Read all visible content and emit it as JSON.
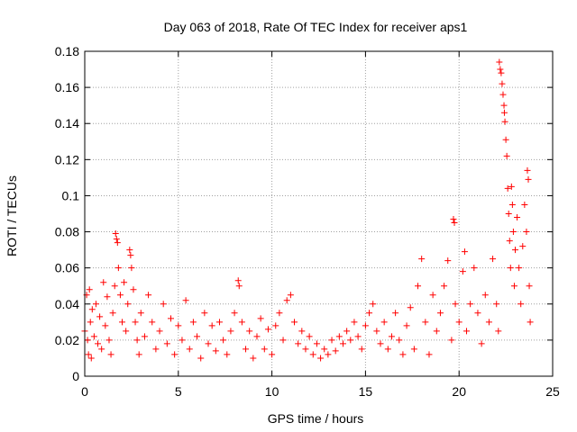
{
  "chart_data": {
    "type": "scatter",
    "title": "Day 063 of 2018, Rate Of TEC Index for receiver aps1",
    "xlabel": "GPS time / hours",
    "ylabel": "ROTI / TECUs",
    "xlim": [
      0,
      25
    ],
    "ylim": [
      0,
      0.18
    ],
    "x_ticks": [
      "0",
      "5",
      "10",
      "15",
      "20",
      "25"
    ],
    "y_ticks": [
      "0",
      "0.02",
      "0.04",
      "0.06",
      "0.08",
      "0.1",
      "0.12",
      "0.14",
      "0.16",
      "0.18"
    ],
    "grid": true,
    "marker": "plus",
    "color": "#ff0000",
    "series": [
      {
        "points": [
          [
            0.0,
            0.025
          ],
          [
            0.1,
            0.045
          ],
          [
            0.15,
            0.02
          ],
          [
            0.2,
            0.012
          ],
          [
            0.25,
            0.048
          ],
          [
            0.3,
            0.03
          ],
          [
            0.35,
            0.01
          ],
          [
            0.4,
            0.037
          ],
          [
            0.5,
            0.022
          ],
          [
            0.6,
            0.04
          ],
          [
            0.7,
            0.018
          ],
          [
            0.8,
            0.033
          ],
          [
            0.9,
            0.015
          ],
          [
            1.0,
            0.052
          ],
          [
            1.1,
            0.028
          ],
          [
            1.2,
            0.044
          ],
          [
            1.3,
            0.02
          ],
          [
            1.4,
            0.012
          ],
          [
            1.5,
            0.035
          ],
          [
            1.6,
            0.05
          ],
          [
            1.65,
            0.079
          ],
          [
            1.7,
            0.076
          ],
          [
            1.75,
            0.074
          ],
          [
            1.8,
            0.06
          ],
          [
            1.9,
            0.045
          ],
          [
            2.0,
            0.03
          ],
          [
            2.1,
            0.052
          ],
          [
            2.2,
            0.025
          ],
          [
            2.3,
            0.04
          ],
          [
            2.4,
            0.07
          ],
          [
            2.45,
            0.067
          ],
          [
            2.5,
            0.06
          ],
          [
            2.6,
            0.048
          ],
          [
            2.7,
            0.03
          ],
          [
            2.8,
            0.02
          ],
          [
            2.9,
            0.012
          ],
          [
            3.0,
            0.035
          ],
          [
            3.2,
            0.022
          ],
          [
            3.4,
            0.045
          ],
          [
            3.6,
            0.03
          ],
          [
            3.8,
            0.015
          ],
          [
            4.0,
            0.025
          ],
          [
            4.2,
            0.04
          ],
          [
            4.4,
            0.018
          ],
          [
            4.6,
            0.032
          ],
          [
            4.8,
            0.012
          ],
          [
            5.0,
            0.028
          ],
          [
            5.2,
            0.02
          ],
          [
            5.4,
            0.042
          ],
          [
            5.6,
            0.015
          ],
          [
            5.8,
            0.03
          ],
          [
            6.0,
            0.022
          ],
          [
            6.2,
            0.01
          ],
          [
            6.4,
            0.035
          ],
          [
            6.6,
            0.018
          ],
          [
            6.8,
            0.028
          ],
          [
            7.0,
            0.014
          ],
          [
            7.2,
            0.03
          ],
          [
            7.4,
            0.02
          ],
          [
            7.6,
            0.012
          ],
          [
            7.8,
            0.025
          ],
          [
            8.0,
            0.035
          ],
          [
            8.2,
            0.053
          ],
          [
            8.25,
            0.05
          ],
          [
            8.4,
            0.03
          ],
          [
            8.6,
            0.015
          ],
          [
            8.8,
            0.025
          ],
          [
            9.0,
            0.01
          ],
          [
            9.2,
            0.022
          ],
          [
            9.4,
            0.032
          ],
          [
            9.6,
            0.015
          ],
          [
            9.8,
            0.026
          ],
          [
            10.0,
            0.012
          ],
          [
            10.2,
            0.028
          ],
          [
            10.4,
            0.035
          ],
          [
            10.6,
            0.02
          ],
          [
            10.8,
            0.042
          ],
          [
            11.0,
            0.045
          ],
          [
            11.2,
            0.03
          ],
          [
            11.4,
            0.018
          ],
          [
            11.6,
            0.025
          ],
          [
            11.8,
            0.015
          ],
          [
            12.0,
            0.022
          ],
          [
            12.2,
            0.012
          ],
          [
            12.4,
            0.018
          ],
          [
            12.6,
            0.01
          ],
          [
            12.8,
            0.015
          ],
          [
            13.0,
            0.012
          ],
          [
            13.2,
            0.02
          ],
          [
            13.4,
            0.014
          ],
          [
            13.6,
            0.022
          ],
          [
            13.8,
            0.018
          ],
          [
            14.0,
            0.025
          ],
          [
            14.2,
            0.02
          ],
          [
            14.4,
            0.03
          ],
          [
            14.6,
            0.022
          ],
          [
            14.8,
            0.015
          ],
          [
            15.0,
            0.028
          ],
          [
            15.2,
            0.035
          ],
          [
            15.4,
            0.04
          ],
          [
            15.6,
            0.025
          ],
          [
            15.8,
            0.018
          ],
          [
            16.0,
            0.03
          ],
          [
            16.2,
            0.015
          ],
          [
            16.4,
            0.022
          ],
          [
            16.6,
            0.035
          ],
          [
            16.8,
            0.02
          ],
          [
            17.0,
            0.012
          ],
          [
            17.2,
            0.028
          ],
          [
            17.4,
            0.038
          ],
          [
            17.6,
            0.015
          ],
          [
            17.8,
            0.05
          ],
          [
            18.0,
            0.065
          ],
          [
            18.2,
            0.03
          ],
          [
            18.4,
            0.012
          ],
          [
            18.6,
            0.045
          ],
          [
            18.8,
            0.025
          ],
          [
            19.0,
            0.035
          ],
          [
            19.2,
            0.05
          ],
          [
            19.4,
            0.064
          ],
          [
            19.6,
            0.02
          ],
          [
            19.7,
            0.087
          ],
          [
            19.75,
            0.085
          ],
          [
            19.8,
            0.04
          ],
          [
            20.0,
            0.03
          ],
          [
            20.2,
            0.058
          ],
          [
            20.3,
            0.069
          ],
          [
            20.4,
            0.025
          ],
          [
            20.6,
            0.04
          ],
          [
            20.8,
            0.06
          ],
          [
            21.0,
            0.035
          ],
          [
            21.2,
            0.018
          ],
          [
            21.4,
            0.045
          ],
          [
            21.6,
            0.03
          ],
          [
            21.8,
            0.065
          ],
          [
            22.0,
            0.04
          ],
          [
            22.1,
            0.025
          ],
          [
            22.15,
            0.174
          ],
          [
            22.2,
            0.17
          ],
          [
            22.25,
            0.168
          ],
          [
            22.3,
            0.162
          ],
          [
            22.35,
            0.156
          ],
          [
            22.4,
            0.15
          ],
          [
            22.42,
            0.146
          ],
          [
            22.45,
            0.141
          ],
          [
            22.5,
            0.131
          ],
          [
            22.55,
            0.122
          ],
          [
            22.6,
            0.104
          ],
          [
            22.65,
            0.09
          ],
          [
            22.7,
            0.075
          ],
          [
            22.75,
            0.06
          ],
          [
            22.8,
            0.105
          ],
          [
            22.85,
            0.095
          ],
          [
            22.9,
            0.08
          ],
          [
            22.95,
            0.05
          ],
          [
            23.0,
            0.07
          ],
          [
            23.1,
            0.088
          ],
          [
            23.2,
            0.06
          ],
          [
            23.3,
            0.04
          ],
          [
            23.4,
            0.072
          ],
          [
            23.5,
            0.095
          ],
          [
            23.6,
            0.08
          ],
          [
            23.65,
            0.114
          ],
          [
            23.7,
            0.109
          ],
          [
            23.75,
            0.05
          ],
          [
            23.8,
            0.03
          ]
        ]
      }
    ]
  }
}
